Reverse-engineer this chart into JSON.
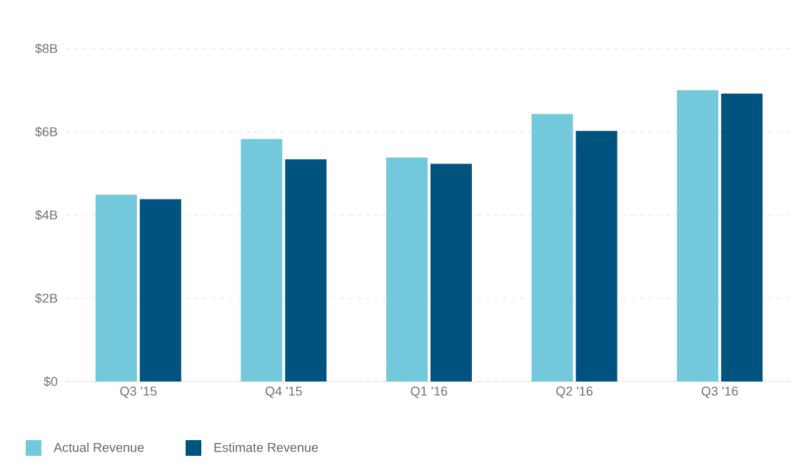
{
  "chart_data": {
    "type": "bar",
    "categories": [
      "Q3 '15",
      "Q4 '15",
      "Q1 '16",
      "Q2 '16",
      "Q3 '16"
    ],
    "series": [
      {
        "name": "Actual Revenue",
        "color": "#74c8db",
        "values": [
          4.49,
          5.83,
          5.38,
          6.43,
          7.0
        ]
      },
      {
        "name": "Estimate Revenue",
        "color": "#00527f",
        "values": [
          4.38,
          5.34,
          5.23,
          6.02,
          6.92
        ]
      }
    ],
    "ylim": [
      0,
      8
    ],
    "yticks": [
      {
        "value": 0,
        "label": "$0"
      },
      {
        "value": 2,
        "label": "$2B"
      },
      {
        "value": 4,
        "label": "$4B"
      },
      {
        "value": 6,
        "label": "$6B"
      },
      {
        "value": 8,
        "label": "$8B"
      }
    ],
    "grid": "y",
    "legend": "bottom left"
  }
}
